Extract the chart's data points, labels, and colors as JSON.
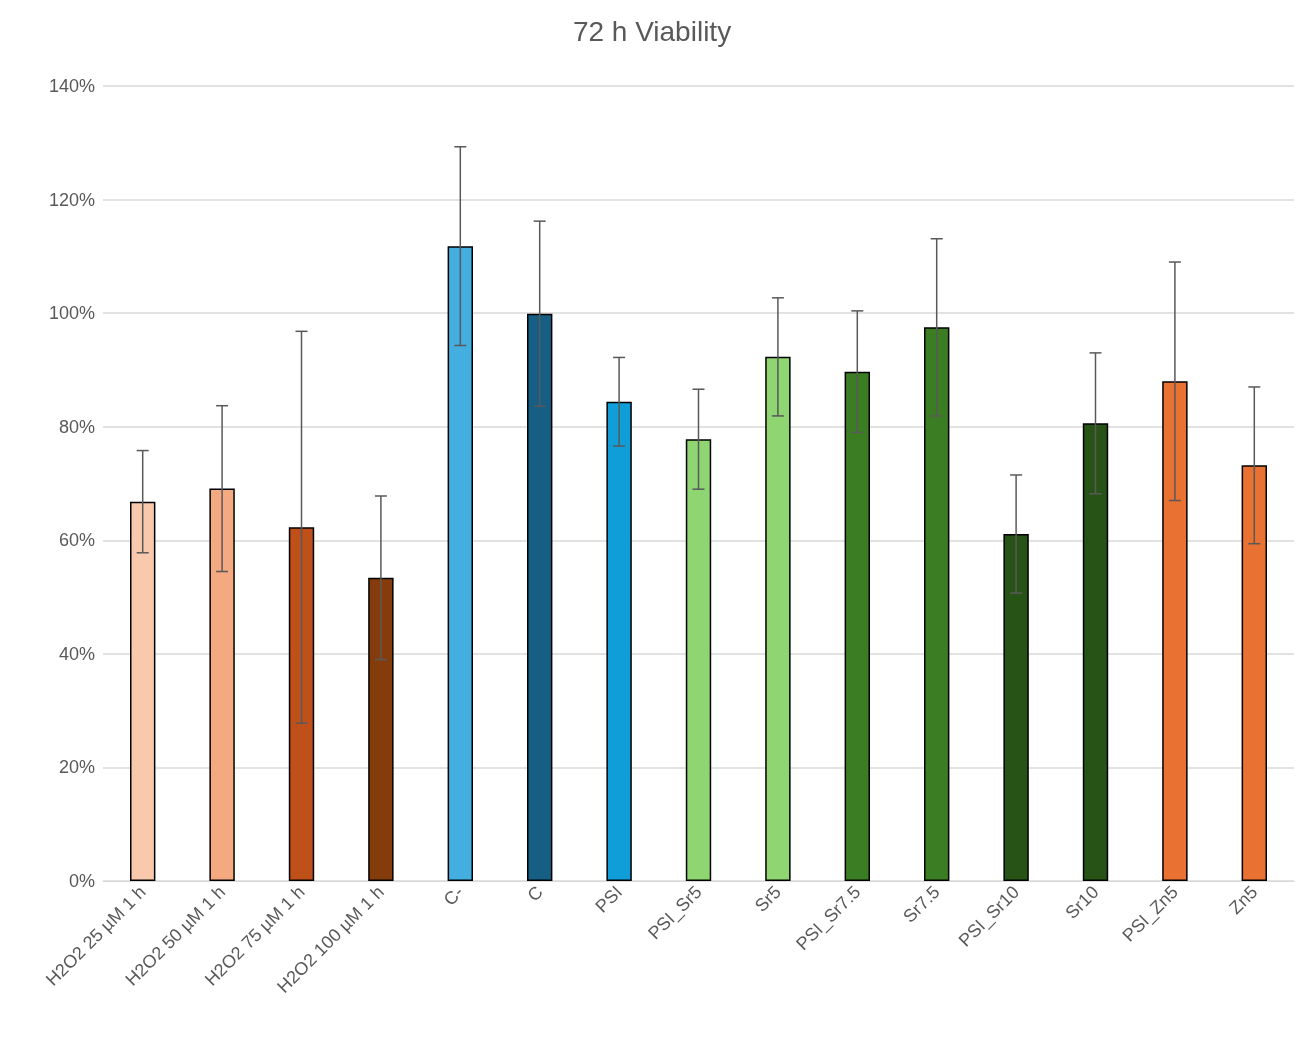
{
  "chart_data": {
    "type": "bar",
    "title": "72 h Viability",
    "categories": [
      "H2O2 25 µM 1 h",
      "H2O2 50 µM 1 h",
      "H2O2 75 µM 1 h",
      "H2O2 100 µM 1 h",
      "C-",
      "C",
      "PSI",
      "PSI_Sr5",
      "Sr5",
      "PSI_Sr7.5",
      "Sr7.5",
      "PSI_Sr10",
      "Sr10",
      "PSI_Zn5",
      "Zn5"
    ],
    "values": [
      66.8,
      69.1,
      62.3,
      53.4,
      111.8,
      99.9,
      84.4,
      77.8,
      92.3,
      89.7,
      97.5,
      61.1,
      80.6,
      88,
      73.2
    ],
    "errors": [
      9,
      14.6,
      34.5,
      14.4,
      17.5,
      16.3,
      7.8,
      8.8,
      10.4,
      10.7,
      15.6,
      10.4,
      12.4,
      21,
      13.8
    ],
    "colors": [
      "#f8c9ac",
      "#f4a981",
      "#c0501a",
      "#843c0c",
      "#45aee1",
      "#175e85",
      "#0f9ed8",
      "#8fd672",
      "#8fd672",
      "#3b7d23",
      "#3b7d23",
      "#275317",
      "#275317",
      "#e97132",
      "#e97132"
    ],
    "ylim": [
      0,
      140
    ],
    "yticks": [
      {
        "value": 0,
        "label": "0%"
      },
      {
        "value": 20,
        "label": "20%"
      },
      {
        "value": 40,
        "label": "40%"
      },
      {
        "value": 60,
        "label": "60%"
      },
      {
        "value": 80,
        "label": "80%"
      },
      {
        "value": 100,
        "label": "100%"
      },
      {
        "value": 120,
        "label": "120%"
      },
      {
        "value": 140,
        "label": "140%"
      }
    ],
    "grid": "y"
  }
}
